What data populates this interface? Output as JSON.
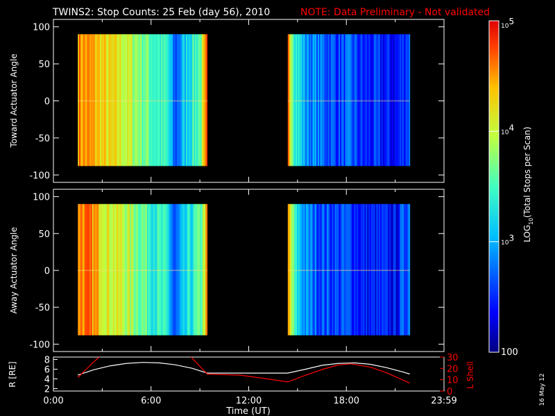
{
  "header": {
    "title": "TWINS2: Stop Counts: 25 Feb (day  56), 2010",
    "note": "NOTE: Data Preliminary - Not validated",
    "note_color": "#ff0000"
  },
  "footer": {
    "date_stamp": "16 May 12"
  },
  "chart_data": [
    {
      "type": "heatmap",
      "name": "toward-panel",
      "ylabel": "Toward Actuator Angle",
      "ylim": [
        -110,
        110
      ],
      "yticks": [
        100,
        50,
        0,
        -50,
        -100
      ],
      "xlim": [
        0,
        24
      ],
      "data_extent": {
        "angle": [
          -88,
          90
        ]
      },
      "segments": [
        [
          1.5,
          9.45
        ],
        [
          14.4,
          21.9
        ]
      ],
      "profile_note": "color index per time column, 0=low counts (blue), 1=high counts (red)",
      "profile_times": [
        1.5,
        2.5,
        3.3,
        4.0,
        5.0,
        6.2,
        7.0,
        7.4,
        8.2,
        9.0,
        9.45,
        14.4,
        14.8,
        15.5,
        16.5,
        17.5,
        18.3,
        19.0,
        20.0,
        21.0,
        21.9
      ],
      "profile_values": [
        0.85,
        0.8,
        0.72,
        0.7,
        0.62,
        0.5,
        0.45,
        0.2,
        0.42,
        0.55,
        0.9,
        0.85,
        0.5,
        0.3,
        0.25,
        0.2,
        0.22,
        0.15,
        0.15,
        0.12,
        0.25
      ]
    },
    {
      "type": "heatmap",
      "name": "away-panel",
      "ylabel": "Away Actuator Angle",
      "ylim": [
        -110,
        110
      ],
      "yticks": [
        100,
        50,
        0,
        -50,
        -100
      ],
      "xlim": [
        0,
        24
      ],
      "data_extent": {
        "angle": [
          -88,
          90
        ]
      },
      "segments": [
        [
          1.5,
          9.45
        ],
        [
          14.4,
          21.9
        ]
      ],
      "profile_times": [
        1.5,
        2.5,
        3.3,
        4.0,
        5.0,
        6.2,
        7.0,
        7.4,
        8.2,
        9.0,
        9.45,
        14.4,
        14.8,
        15.5,
        16.5,
        17.5,
        18.3,
        19.0,
        20.0,
        21.0,
        21.9
      ],
      "profile_values": [
        0.88,
        0.82,
        0.7,
        0.68,
        0.6,
        0.48,
        0.42,
        0.18,
        0.4,
        0.52,
        0.85,
        0.8,
        0.45,
        0.28,
        0.22,
        0.2,
        0.2,
        0.14,
        0.14,
        0.12,
        0.3
      ]
    },
    {
      "type": "line",
      "name": "orbit-panel",
      "ylabel": "R [RE]",
      "ylabel2": "L Shell",
      "ylim": [
        1.5,
        8.5
      ],
      "yticks": [
        2,
        4,
        6,
        8
      ],
      "ylim2": [
        0,
        30
      ],
      "yticks2": [
        0,
        10,
        20,
        30
      ],
      "xlabel": "Time (UT)",
      "xlim": [
        0,
        24
      ],
      "xticks": [
        0,
        6,
        12,
        18,
        24
      ],
      "xticklabels": [
        "0:00",
        "6:00",
        "12:00",
        "18:00",
        "23:59"
      ],
      "series": [
        {
          "name": "R",
          "axis": "left",
          "color": "#ffffff",
          "x": [
            1.5,
            2.5,
            3.5,
            4.5,
            5.5,
            6.5,
            7.5,
            8.5,
            9.45,
            14.4,
            15.5,
            16.5,
            17.5,
            18.5,
            19.5,
            20.5,
            21.5,
            21.9
          ],
          "y": [
            4.8,
            5.9,
            6.7,
            7.2,
            7.4,
            7.3,
            6.9,
            6.2,
            5.2,
            5.2,
            6.0,
            6.8,
            7.2,
            7.3,
            7.0,
            6.3,
            5.4,
            5.0
          ]
        },
        {
          "name": "L Shell",
          "axis": "right",
          "color": "#ff0000",
          "x": [
            1.5,
            2.5,
            2.9,
            8.4,
            9.45,
            11.5,
            13.0,
            14.4,
            15.3,
            16.5,
            17.5,
            18.3,
            19.5,
            20.5,
            21.9
          ],
          "y": [
            12,
            26,
            31,
            31,
            15,
            14,
            11,
            8,
            13,
            19,
            23,
            24,
            21,
            16,
            7
          ]
        }
      ]
    },
    {
      "type": "colorbar",
      "name": "color-scale",
      "label": "LOG10(Total Stops per Scan)",
      "label_parts": {
        "pre": "LOG",
        "sub": "10",
        "post": "(Total Stops per Scan)"
      },
      "range": [
        100,
        100000
      ],
      "ticks": [
        {
          "value": 100000,
          "base": "10",
          "exp": "5"
        },
        {
          "value": 10000,
          "base": "10",
          "exp": "4"
        },
        {
          "value": 1000,
          "base": "10",
          "exp": "3"
        },
        {
          "value": 100,
          "text": "100"
        }
      ]
    }
  ]
}
